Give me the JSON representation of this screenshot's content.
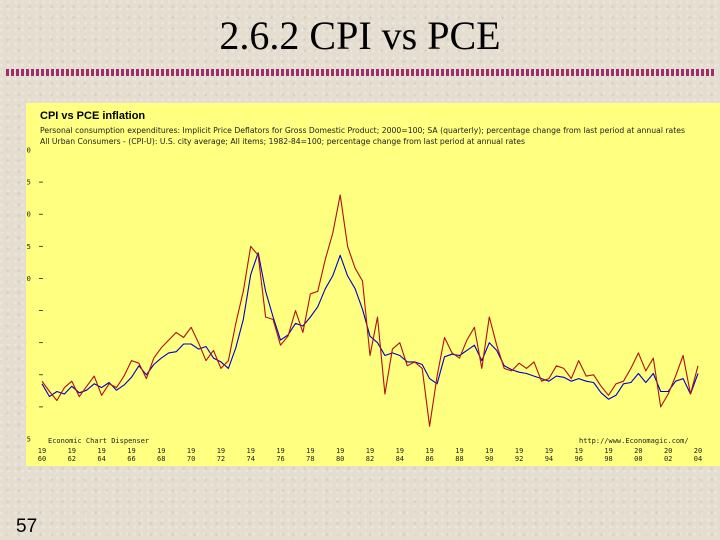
{
  "slide": {
    "title": "2.6.2 CPI vs PCE",
    "page_number": "57"
  },
  "colors": {
    "panel_background": "#ffff80",
    "pce_line": "#0000cc",
    "cpi_line": "#b01010",
    "title_rule": "#9b2f6b"
  },
  "chart_data": {
    "type": "line",
    "title": "CPI vs PCE inflation",
    "legend": [
      {
        "marker": "<",
        "text": "Personal consumption expenditures: Implicit Price Deflators for Gross Domestic Product; 2000=100; SA (quarterly); percentage change from last period at annual rates"
      },
      {
        "marker": "<",
        "text": "All Urban Consumers - (CPI-U): U.S. city average; All items; 1982-84=100; percentage change from last period at annual rates"
      }
    ],
    "ylim": [
      -2.5,
      20.0
    ],
    "yticks": [
      "20.0",
      "17.5",
      "15.0",
      "12.5",
      "10.0",
      "7.5",
      "5.0",
      "2.5",
      "0.0",
      "-2.5"
    ],
    "xlim": [
      1960,
      2004
    ],
    "xticks": [
      {
        "top": "19",
        "bottom": "60",
        "year": 1960
      },
      {
        "top": "19",
        "bottom": "62",
        "year": 1962
      },
      {
        "top": "19",
        "bottom": "64",
        "year": 1964
      },
      {
        "top": "19",
        "bottom": "66",
        "year": 1966
      },
      {
        "top": "19",
        "bottom": "68",
        "year": 1968
      },
      {
        "top": "19",
        "bottom": "70",
        "year": 1970
      },
      {
        "top": "19",
        "bottom": "72",
        "year": 1972
      },
      {
        "top": "19",
        "bottom": "74",
        "year": 1974
      },
      {
        "top": "19",
        "bottom": "76",
        "year": 1976
      },
      {
        "top": "19",
        "bottom": "78",
        "year": 1978
      },
      {
        "top": "19",
        "bottom": "80",
        "year": 1980
      },
      {
        "top": "19",
        "bottom": "82",
        "year": 1982
      },
      {
        "top": "19",
        "bottom": "84",
        "year": 1984
      },
      {
        "top": "19",
        "bottom": "86",
        "year": 1986
      },
      {
        "top": "19",
        "bottom": "88",
        "year": 1988
      },
      {
        "top": "19",
        "bottom": "90",
        "year": 1990
      },
      {
        "top": "19",
        "bottom": "92",
        "year": 1992
      },
      {
        "top": "19",
        "bottom": "94",
        "year": 1994
      },
      {
        "top": "19",
        "bottom": "96",
        "year": 1996
      },
      {
        "top": "19",
        "bottom": "98",
        "year": 1998
      },
      {
        "top": "20",
        "bottom": "00",
        "year": 2000
      },
      {
        "top": "20",
        "bottom": "02",
        "year": 2002
      },
      {
        "top": "20",
        "bottom": "04",
        "year": 2004
      }
    ],
    "footer_left": "Economic Chart Dispenser",
    "footer_right": "http://www.Economagic.com/",
    "series": [
      {
        "key": "pce",
        "color": "#0000cc",
        "points": [
          [
            1960.0,
            1.8
          ],
          [
            1960.5,
            0.8
          ],
          [
            1961.0,
            1.2
          ],
          [
            1961.5,
            1.0
          ],
          [
            1962.0,
            1.6
          ],
          [
            1962.5,
            1.1
          ],
          [
            1963.0,
            1.3
          ],
          [
            1963.5,
            1.8
          ],
          [
            1964.0,
            1.5
          ],
          [
            1964.5,
            1.9
          ],
          [
            1965.0,
            1.3
          ],
          [
            1965.5,
            1.7
          ],
          [
            1966.0,
            2.3
          ],
          [
            1966.5,
            3.2
          ],
          [
            1967.0,
            2.5
          ],
          [
            1967.5,
            3.3
          ],
          [
            1968.0,
            3.8
          ],
          [
            1968.5,
            4.2
          ],
          [
            1969.0,
            4.3
          ],
          [
            1969.5,
            4.9
          ],
          [
            1970.0,
            4.9
          ],
          [
            1970.5,
            4.5
          ],
          [
            1971.0,
            4.7
          ],
          [
            1971.5,
            3.8
          ],
          [
            1972.0,
            3.5
          ],
          [
            1972.5,
            3.0
          ],
          [
            1973.0,
            4.6
          ],
          [
            1973.5,
            6.8
          ],
          [
            1974.0,
            10.3
          ],
          [
            1974.5,
            12.0
          ],
          [
            1975.0,
            9.0
          ],
          [
            1975.5,
            7.0
          ],
          [
            1976.0,
            5.2
          ],
          [
            1976.5,
            5.6
          ],
          [
            1977.0,
            6.5
          ],
          [
            1977.5,
            6.3
          ],
          [
            1978.0,
            7.0
          ],
          [
            1978.5,
            7.8
          ],
          [
            1979.0,
            9.2
          ],
          [
            1979.5,
            10.2
          ],
          [
            1980.0,
            11.8
          ],
          [
            1980.5,
            10.2
          ],
          [
            1981.0,
            9.2
          ],
          [
            1981.5,
            7.6
          ],
          [
            1982.0,
            5.5
          ],
          [
            1982.5,
            5.0
          ],
          [
            1983.0,
            4.0
          ],
          [
            1983.5,
            4.2
          ],
          [
            1984.0,
            4.0
          ],
          [
            1984.5,
            3.5
          ],
          [
            1985.0,
            3.5
          ],
          [
            1985.5,
            3.3
          ],
          [
            1986.0,
            2.2
          ],
          [
            1986.5,
            1.8
          ],
          [
            1987.0,
            3.9
          ],
          [
            1987.5,
            4.1
          ],
          [
            1988.0,
            4.0
          ],
          [
            1988.5,
            4.4
          ],
          [
            1989.0,
            4.8
          ],
          [
            1989.5,
            3.6
          ],
          [
            1990.0,
            5.0
          ],
          [
            1990.5,
            4.4
          ],
          [
            1991.0,
            3.2
          ],
          [
            1991.5,
            2.9
          ],
          [
            1992.0,
            2.7
          ],
          [
            1992.5,
            2.6
          ],
          [
            1993.0,
            2.4
          ],
          [
            1993.5,
            2.2
          ],
          [
            1994.0,
            2.0
          ],
          [
            1994.5,
            2.4
          ],
          [
            1995.0,
            2.3
          ],
          [
            1995.5,
            2.0
          ],
          [
            1996.0,
            2.2
          ],
          [
            1996.5,
            2.0
          ],
          [
            1997.0,
            1.9
          ],
          [
            1997.5,
            1.1
          ],
          [
            1998.0,
            0.6
          ],
          [
            1998.5,
            0.9
          ],
          [
            1999.0,
            1.8
          ],
          [
            1999.5,
            1.9
          ],
          [
            2000.0,
            2.6
          ],
          [
            2000.5,
            1.9
          ],
          [
            2001.0,
            2.6
          ],
          [
            2001.5,
            1.2
          ],
          [
            2002.0,
            1.2
          ],
          [
            2002.5,
            2.0
          ],
          [
            2003.0,
            2.2
          ],
          [
            2003.5,
            1.0
          ],
          [
            2004.0,
            2.6
          ]
        ]
      },
      {
        "key": "cpi",
        "color": "#b01010",
        "points": [
          [
            1960.0,
            2.0
          ],
          [
            1960.5,
            1.2
          ],
          [
            1961.0,
            0.5
          ],
          [
            1961.5,
            1.5
          ],
          [
            1962.0,
            2.0
          ],
          [
            1962.5,
            0.8
          ],
          [
            1963.0,
            1.6
          ],
          [
            1963.5,
            2.4
          ],
          [
            1964.0,
            0.9
          ],
          [
            1964.5,
            1.8
          ],
          [
            1965.0,
            1.5
          ],
          [
            1965.5,
            2.4
          ],
          [
            1966.0,
            3.6
          ],
          [
            1966.5,
            3.4
          ],
          [
            1967.0,
            2.2
          ],
          [
            1967.5,
            3.8
          ],
          [
            1968.0,
            4.6
          ],
          [
            1968.5,
            5.2
          ],
          [
            1969.0,
            5.8
          ],
          [
            1969.5,
            5.4
          ],
          [
            1970.0,
            6.2
          ],
          [
            1970.5,
            5.0
          ],
          [
            1971.0,
            3.6
          ],
          [
            1971.5,
            4.4
          ],
          [
            1972.0,
            3.0
          ],
          [
            1972.5,
            3.6
          ],
          [
            1973.0,
            6.5
          ],
          [
            1973.5,
            9.0
          ],
          [
            1974.0,
            12.5
          ],
          [
            1974.5,
            11.8
          ],
          [
            1975.0,
            7.0
          ],
          [
            1975.5,
            6.8
          ],
          [
            1976.0,
            4.8
          ],
          [
            1976.5,
            5.5
          ],
          [
            1977.0,
            7.5
          ],
          [
            1977.5,
            5.8
          ],
          [
            1978.0,
            8.8
          ],
          [
            1978.5,
            9.0
          ],
          [
            1979.0,
            11.5
          ],
          [
            1979.5,
            13.5
          ],
          [
            1980.0,
            16.5
          ],
          [
            1980.5,
            12.5
          ],
          [
            1981.0,
            10.8
          ],
          [
            1981.5,
            9.8
          ],
          [
            1982.0,
            4.0
          ],
          [
            1982.5,
            7.0
          ],
          [
            1983.0,
            1.0
          ],
          [
            1983.5,
            4.5
          ],
          [
            1984.0,
            5.0
          ],
          [
            1984.5,
            3.2
          ],
          [
            1985.0,
            3.5
          ],
          [
            1985.5,
            3.0
          ],
          [
            1986.0,
            -1.5
          ],
          [
            1986.5,
            2.4
          ],
          [
            1987.0,
            5.4
          ],
          [
            1987.5,
            4.2
          ],
          [
            1988.0,
            3.8
          ],
          [
            1988.5,
            5.2
          ],
          [
            1989.0,
            6.2
          ],
          [
            1989.5,
            3.0
          ],
          [
            1990.0,
            7.0
          ],
          [
            1990.5,
            4.8
          ],
          [
            1991.0,
            3.0
          ],
          [
            1991.5,
            2.8
          ],
          [
            1992.0,
            3.4
          ],
          [
            1992.5,
            3.0
          ],
          [
            1993.0,
            3.5
          ],
          [
            1993.5,
            2.0
          ],
          [
            1994.0,
            2.2
          ],
          [
            1994.5,
            3.2
          ],
          [
            1995.0,
            3.0
          ],
          [
            1995.5,
            2.2
          ],
          [
            1996.0,
            3.6
          ],
          [
            1996.5,
            2.4
          ],
          [
            1997.0,
            2.5
          ],
          [
            1997.5,
            1.6
          ],
          [
            1998.0,
            0.9
          ],
          [
            1998.5,
            1.8
          ],
          [
            1999.0,
            2.0
          ],
          [
            1999.5,
            3.0
          ],
          [
            2000.0,
            4.2
          ],
          [
            2000.5,
            2.8
          ],
          [
            2001.0,
            3.8
          ],
          [
            2001.5,
            0.0
          ],
          [
            2002.0,
            1.0
          ],
          [
            2002.5,
            2.4
          ],
          [
            2003.0,
            4.0
          ],
          [
            2003.5,
            1.0
          ],
          [
            2004.0,
            3.2
          ]
        ]
      }
    ]
  }
}
